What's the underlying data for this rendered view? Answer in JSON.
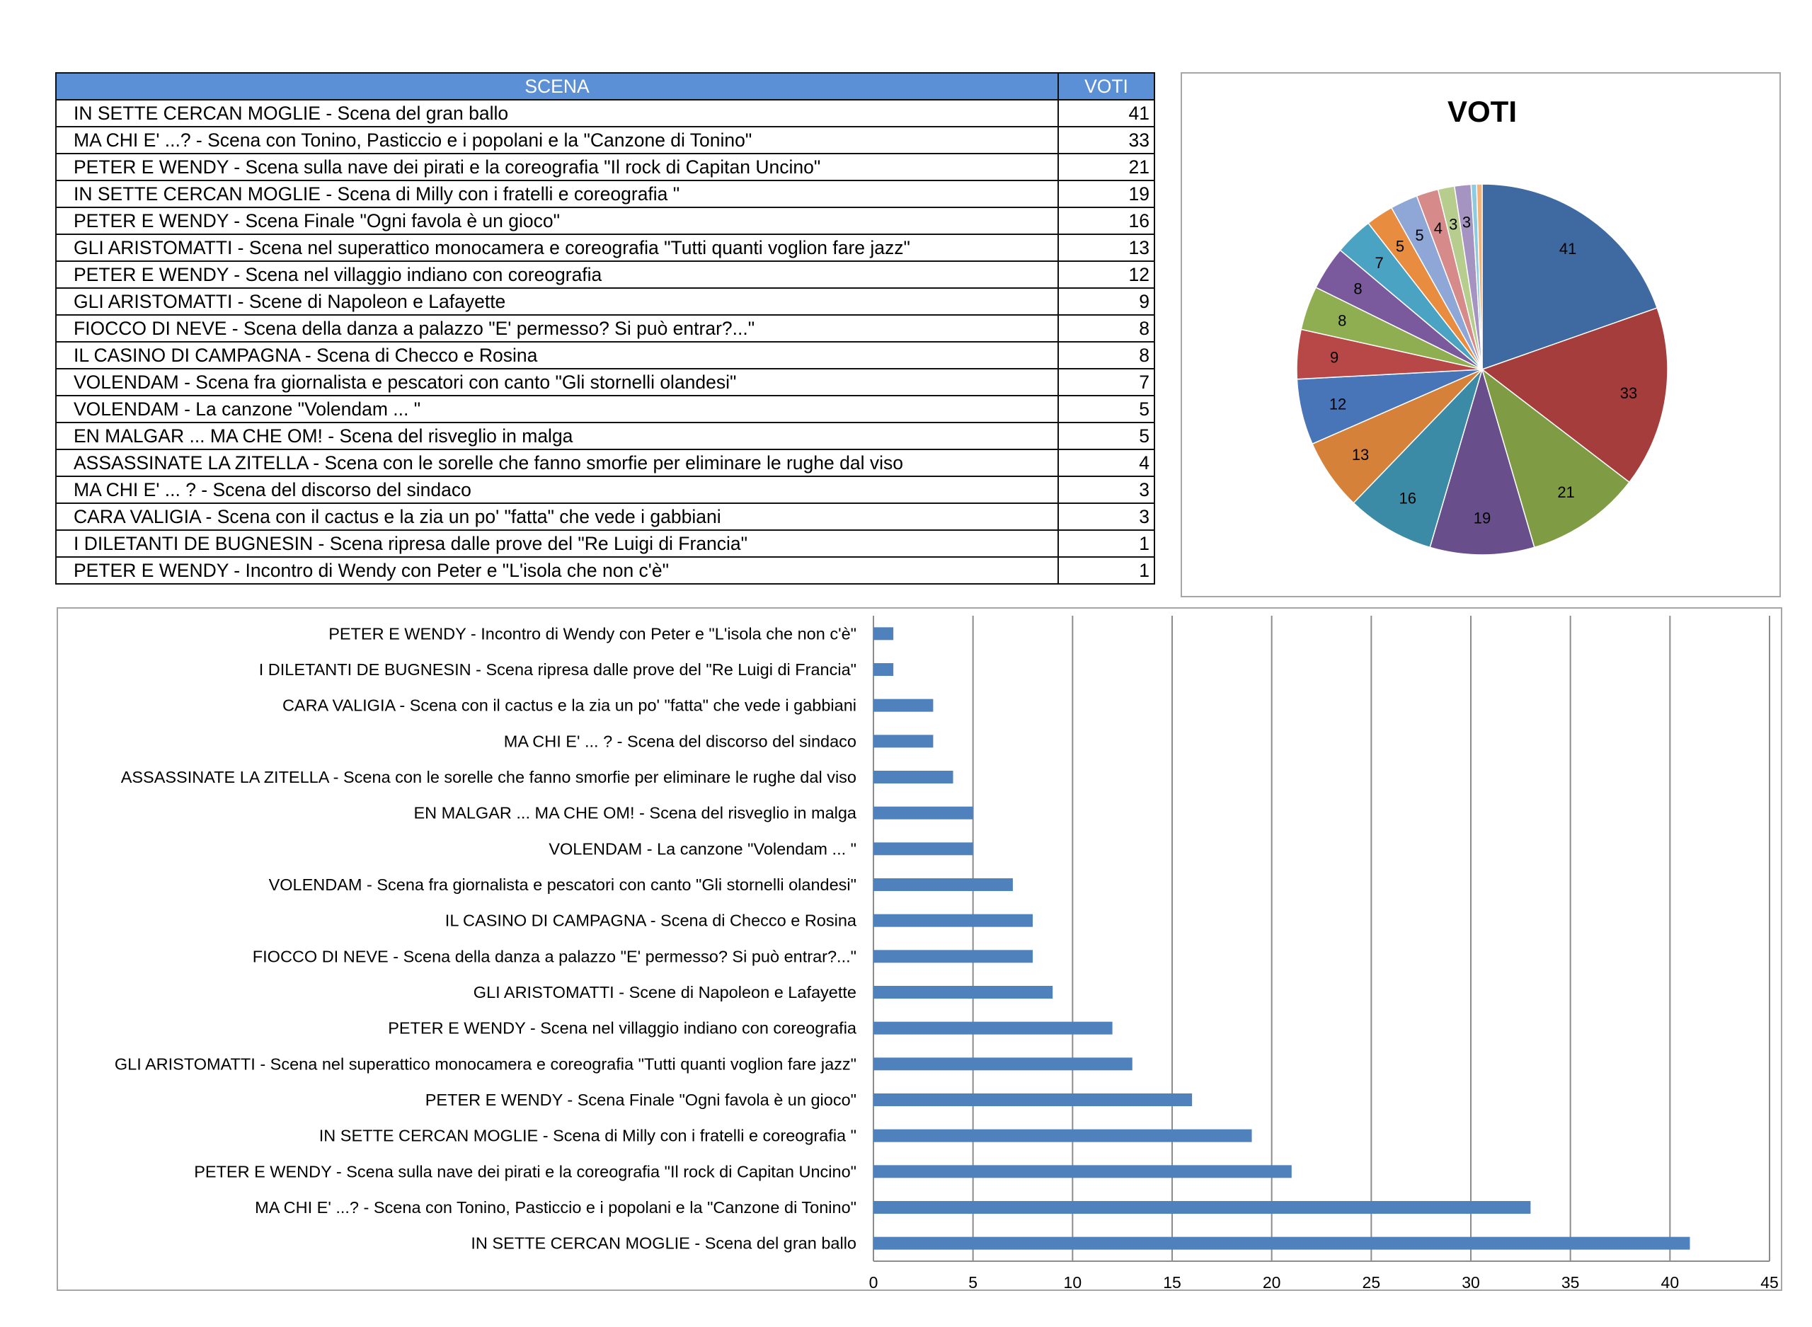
{
  "table": {
    "header_scene": "SCENA",
    "header_votes": "VOTI",
    "rows": [
      {
        "name": "IN SETTE CERCAN MOGLIE - Scena del gran ballo",
        "votes": "41"
      },
      {
        "name": "MA CHI E' ...? - Scena con Tonino, Pasticcio e i popolani e la \"Canzone di Tonino\"",
        "votes": "33"
      },
      {
        "name": "PETER E WENDY - Scena sulla nave dei pirati e la coreografia \"Il rock di Capitan Uncino\"",
        "votes": "21"
      },
      {
        "name": "IN SETTE CERCAN MOGLIE - Scena di Milly con i fratelli e coreografia \"",
        "votes": "19"
      },
      {
        "name": "PETER E WENDY - Scena Finale \"Ogni favola è un gioco\"",
        "votes": "16"
      },
      {
        "name": "GLI ARISTOMATTI - Scena nel superattico monocamera e coreografia \"Tutti quanti voglion fare jazz\"",
        "votes": "13"
      },
      {
        "name": "PETER E WENDY - Scena nel villaggio indiano con coreografia",
        "votes": "12"
      },
      {
        "name": "GLI ARISTOMATTI - Scene di Napoleon e Lafayette",
        "votes": "9"
      },
      {
        "name": "FIOCCO DI NEVE - Scena della danza a palazzo \"E' permesso? Si può entrar?...\"",
        "votes": "8"
      },
      {
        "name": "IL CASINO DI CAMPAGNA - Scena di Checco e Rosina",
        "votes": "8"
      },
      {
        "name": "VOLENDAM - Scena fra giornalista e pescatori con canto \"Gli stornelli olandesi\"",
        "votes": "7"
      },
      {
        "name": "VOLENDAM - La canzone \"Volendam ... \"",
        "votes": "5"
      },
      {
        "name": "EN MALGAR ... MA CHE OM! - Scena del risveglio in malga",
        "votes": "5"
      },
      {
        "name": "ASSASSINATE LA ZITELLA - Scena con le sorelle che fanno smorfie per eliminare le rughe dal viso",
        "votes": "4"
      },
      {
        "name": "MA CHI E' ... ? - Scena del discorso del sindaco",
        "votes": "3"
      },
      {
        "name": "CARA VALIGIA - Scena con il cactus e la zia un po' \"fatta\" che vede i gabbiani",
        "votes": "3"
      },
      {
        "name": "I DILETANTI DE BUGNESIN - Scena ripresa dalle prove del \"Re Luigi di Francia\"",
        "votes": "1"
      },
      {
        "name": "PETER E WENDY - Incontro di Wendy con Peter e \"L'isola che non c'è\"",
        "votes": "1"
      }
    ]
  },
  "chart_data": [
    {
      "type": "pie",
      "title": "VOTI",
      "values": [
        41,
        33,
        21,
        19,
        16,
        13,
        12,
        9,
        8,
        8,
        7,
        5,
        5,
        4,
        3,
        3,
        1,
        1
      ],
      "labels": [
        "41",
        "33",
        "21",
        "19",
        "16",
        "13",
        "12",
        "9",
        "8",
        "8",
        "7",
        "5",
        "5",
        "4",
        "3",
        "3",
        "",
        ""
      ],
      "colors": [
        "#3e6aa1",
        "#a43d3b",
        "#7f9b43",
        "#684f8c",
        "#3b8aa6",
        "#d6813a",
        "#4874b8",
        "#b84848",
        "#8fae52",
        "#7a5a9c",
        "#4aa3c2",
        "#e88c3f",
        "#8ea7d6",
        "#d68a8a",
        "#b6cd8e",
        "#a594c2",
        "#8ccbe0",
        "#f2b27a"
      ]
    },
    {
      "type": "bar",
      "orientation": "horizontal",
      "categories": [
        "PETER E WENDY - Incontro di Wendy con Peter e \"L'isola che non c'è\"",
        "I DILETANTI DE BUGNESIN - Scena ripresa dalle prove del \"Re Luigi di Francia\"",
        "CARA VALIGIA - Scena con il cactus e la zia un po' \"fatta\" che vede i gabbiani",
        "MA CHI E' ... ? - Scena del discorso del sindaco",
        "ASSASSINATE LA ZITELLA - Scena con le sorelle che fanno smorfie per eliminare le rughe dal viso",
        "EN MALGAR ... MA CHE OM! - Scena del risveglio in malga",
        "VOLENDAM - La canzone \"Volendam ... \"",
        "VOLENDAM - Scena fra giornalista e pescatori con canto \"Gli stornelli olandesi\"",
        "IL CASINO DI CAMPAGNA - Scena di Checco e Rosina",
        "FIOCCO DI NEVE - Scena della danza a palazzo \"E' permesso? Si può entrar?...\"",
        "GLI ARISTOMATTI - Scene di Napoleon e Lafayette",
        "PETER E WENDY - Scena nel villaggio indiano con coreografia",
        "GLI ARISTOMATTI - Scena nel superattico monocamera e coreografia \"Tutti quanti voglion fare jazz\"",
        "PETER E WENDY - Scena Finale \"Ogni favola è un gioco\"",
        "IN SETTE CERCAN MOGLIE - Scena di Milly con i fratelli e coreografia \"",
        "PETER E WENDY - Scena sulla nave dei pirati e la coreografia \"Il rock di Capitan Uncino\"",
        "MA CHI E' ...? - Scena con Tonino, Pasticcio e i popolani e la \"Canzone di Tonino\"",
        "IN SETTE CERCAN MOGLIE - Scena del gran ballo"
      ],
      "values": [
        1,
        1,
        3,
        3,
        4,
        5,
        5,
        7,
        8,
        8,
        9,
        12,
        13,
        16,
        19,
        21,
        33,
        41
      ],
      "xlim": [
        0,
        45
      ],
      "xticks": [
        0,
        5,
        10,
        15,
        20,
        25,
        30,
        35,
        40,
        45
      ],
      "grid": "vertical",
      "bar_color": "#4f81bd"
    }
  ]
}
